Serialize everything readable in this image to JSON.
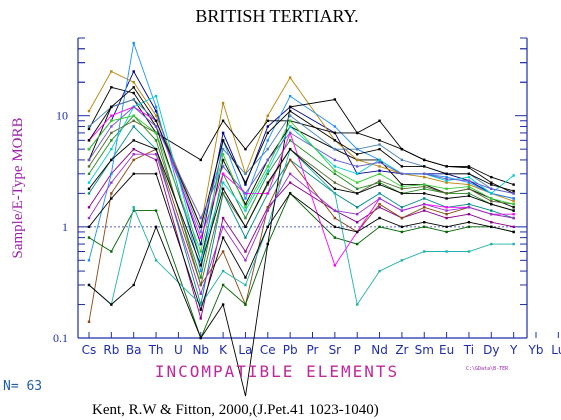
{
  "chart_data": {
    "type": "line",
    "title": "BRITISH TERTIARY.",
    "ylabel": "Sample/E-Type MORB",
    "xlabel": "INCOMPATIBLE ELEMENTS",
    "yscale": "log",
    "ylim": [
      0.1,
      50
    ],
    "yticks": [
      "0.1",
      "1",
      "10"
    ],
    "reference_line": 1,
    "categories": [
      "Cs",
      "Rb",
      "Ba",
      "Th",
      "U",
      "Nb",
      "K",
      "La",
      "Ce",
      "Pb",
      "Pr",
      "Sr",
      "P",
      "Nd",
      "Zr",
      "Sm",
      "Eu",
      "Ti",
      "Dy",
      "Y",
      "Yb",
      "Lu"
    ],
    "n_label": "N= 63",
    "file_path": "C:\\GData\\B-TER",
    "citation": "Kent, R.W & Fitton, 2000,(J.Pet.41 1023-1040)",
    "series": [
      {
        "color": "#000000",
        "values": [
          7.6,
          18,
          16,
          8,
          null,
          0.5,
          4,
          1.6,
          4,
          8,
          null,
          5,
          4,
          4,
          2.4,
          2.4,
          2,
          2.2,
          1.8,
          1.5,
          null,
          null
        ]
      },
      {
        "color": "#00008b",
        "values": [
          5,
          9,
          25,
          11,
          null,
          0.7,
          7,
          2.4,
          8,
          12,
          null,
          7,
          3,
          3.2,
          3,
          3,
          3,
          2.6,
          2,
          1.8,
          null,
          null
        ]
      },
      {
        "color": "#228b22",
        "values": [
          3,
          6,
          10,
          6,
          null,
          0.35,
          3,
          1.2,
          3,
          6,
          null,
          3,
          2.2,
          2.5,
          2,
          2.2,
          2,
          2,
          1.6,
          1.4,
          null,
          null
        ]
      },
      {
        "color": "#008b8b",
        "values": [
          2,
          4,
          8,
          5,
          null,
          0.2,
          2,
          0.8,
          2,
          4,
          null,
          2,
          1.5,
          2,
          1.5,
          1.8,
          1.5,
          1.6,
          1.4,
          1.2,
          null,
          null
        ]
      },
      {
        "color": "#8b008b",
        "values": [
          1.5,
          3,
          5,
          4,
          null,
          0.15,
          1.2,
          0.6,
          1.5,
          2.5,
          null,
          1.4,
          1.1,
          1.5,
          1.2,
          1.4,
          1.2,
          1.3,
          1.1,
          1,
          null,
          null
        ]
      },
      {
        "color": "#b8860b",
        "values": [
          11,
          25,
          20,
          10,
          null,
          1,
          13,
          3,
          10,
          22,
          null,
          6,
          4,
          3.5,
          3,
          2.8,
          2.5,
          2.4,
          2,
          1.7,
          null,
          null
        ]
      },
      {
        "color": "#1e90ff",
        "values": [
          0.5,
          3,
          45,
          12,
          null,
          0.4,
          6,
          1.8,
          6,
          15,
          null,
          8,
          5,
          4,
          3,
          3,
          2.8,
          2.5,
          2,
          1.8,
          null,
          null
        ]
      },
      {
        "color": "#000000",
        "values": [
          4,
          12,
          14,
          7,
          null,
          4,
          9,
          5,
          9,
          9,
          null,
          7,
          7,
          9,
          5,
          4,
          3.5,
          3.4,
          2.5,
          2,
          null,
          null
        ]
      },
      {
        "color": "#8b4513",
        "values": [
          0.14,
          2,
          4,
          5,
          null,
          0.3,
          0.6,
          0.2,
          1.5,
          4,
          null,
          1.2,
          0.9,
          1.6,
          1.2,
          1.5,
          1.3,
          1.5,
          1.3,
          1.2,
          null,
          null
        ]
      },
      {
        "color": "#006400",
        "values": [
          0.8,
          0.6,
          1.4,
          1.4,
          null,
          0.1,
          0.3,
          0.2,
          0.7,
          2,
          null,
          0.8,
          0.7,
          1,
          0.9,
          1,
          0.9,
          1,
          1,
          0.9,
          null,
          null
        ]
      },
      {
        "color": "#20b2aa",
        "values": [
          0.3,
          0.2,
          1.5,
          0.5,
          null,
          0.2,
          0.4,
          0.3,
          1,
          5,
          null,
          2,
          0.2,
          0.4,
          0.5,
          0.6,
          0.6,
          0.6,
          0.7,
          0.7,
          null,
          null
        ]
      },
      {
        "color": "#000000",
        "values": [
          0.3,
          0.2,
          0.3,
          1,
          null,
          0.1,
          0.2,
          0.03,
          0.7,
          12,
          null,
          14,
          7,
          6,
          5,
          4,
          3.5,
          3.5,
          2.8,
          2.4,
          null,
          null
        ]
      },
      {
        "color": "#ff00ff",
        "values": [
          6,
          10,
          12,
          9,
          null,
          0.8,
          3,
          2,
          2,
          7,
          null,
          0.45,
          0.9,
          1.8,
          1.4,
          1.6,
          1.5,
          1.5,
          1.3,
          1.3,
          null,
          null
        ]
      },
      {
        "color": "#4682b4",
        "values": [
          8,
          12,
          14,
          9,
          null,
          0.9,
          5,
          3,
          5,
          10,
          null,
          5,
          5,
          5.5,
          4,
          3.5,
          3,
          3,
          2.2,
          2,
          null,
          null
        ]
      },
      {
        "color": "#00ced1",
        "values": [
          2.5,
          5,
          12,
          15,
          null,
          0.5,
          2.5,
          1.4,
          3.2,
          8,
          null,
          3.5,
          3,
          4,
          3,
          3,
          2.6,
          2.8,
          2,
          2.9,
          null,
          null
        ]
      },
      {
        "color": "#556b2f",
        "values": [
          3.5,
          7,
          9,
          7,
          null,
          0.3,
          2,
          1,
          2.4,
          5,
          null,
          2.5,
          2,
          2.6,
          2.2,
          2.3,
          2,
          2.2,
          1.7,
          1.6,
          null,
          null
        ]
      },
      {
        "color": "#9932cc",
        "values": [
          1.2,
          2.5,
          4.5,
          4.5,
          null,
          0.25,
          1,
          0.5,
          1.4,
          3,
          null,
          1.4,
          1.3,
          1.8,
          1.4,
          1.6,
          1.4,
          1.5,
          1.3,
          1.2,
          null,
          null
        ]
      },
      {
        "color": "#000000",
        "values": [
          6,
          12,
          18,
          9,
          null,
          1,
          6,
          2.5,
          7,
          11,
          null,
          6,
          4.5,
          5,
          3.5,
          3.5,
          3,
          3,
          2.4,
          2.1,
          null,
          null
        ]
      },
      {
        "color": "#6a5acd",
        "values": [
          4,
          8,
          12,
          8,
          null,
          1.2,
          3.5,
          2,
          4,
          7,
          null,
          4,
          3.5,
          3.8,
          3,
          3,
          2.7,
          2.6,
          2.2,
          2,
          null,
          null
        ]
      },
      {
        "color": "#32cd32",
        "values": [
          5,
          9,
          10,
          7,
          null,
          0.6,
          4.5,
          1.5,
          3.5,
          9,
          null,
          3.2,
          2.5,
          3,
          2.3,
          2.4,
          2.2,
          2.3,
          1.8,
          1.6,
          null,
          null
        ]
      },
      {
        "color": "#000000",
        "values": [
          2.2,
          4,
          6,
          5,
          null,
          0.45,
          2.2,
          1,
          2.5,
          5,
          null,
          2.2,
          2,
          2.4,
          2,
          2,
          1.8,
          1.9,
          1.6,
          1.4,
          null,
          null
        ]
      },
      {
        "color": "#000000",
        "values": [
          1,
          1.8,
          3,
          3,
          null,
          0.18,
          0.8,
          0.35,
          1,
          2,
          null,
          1,
          0.9,
          1.2,
          1,
          1.1,
          1,
          1.1,
          1,
          0.9,
          null,
          null
        ]
      }
    ]
  }
}
